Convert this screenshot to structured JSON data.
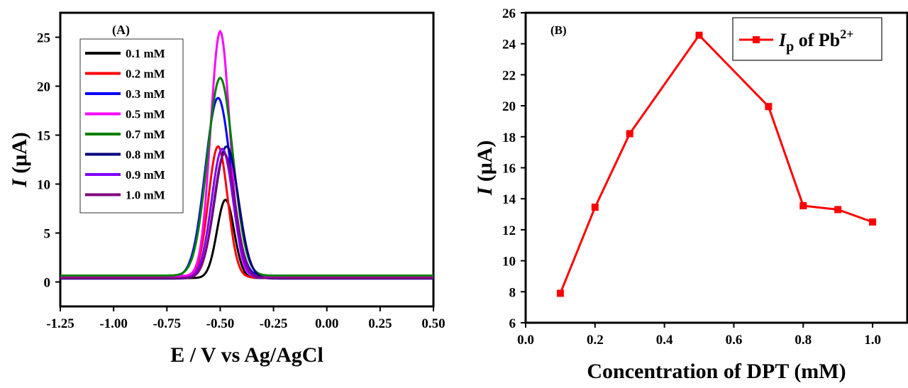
{
  "chart_data": [
    {
      "type": "line",
      "panel_label": "(A)",
      "xlabel": "E / V vs Ag/AgCl",
      "ylabel_italic": "I",
      "ylabel_rest": " (μA)",
      "xlim": [
        -1.25,
        0.5
      ],
      "ylim": [
        -2.5,
        27.5
      ],
      "xticks": [
        "-1.25",
        "-1.00",
        "-0.75",
        "-0.50",
        "-0.25",
        "0.00",
        "0.25",
        "0.50"
      ],
      "yticks": [
        "0",
        "5",
        "10",
        "15",
        "20",
        "25"
      ],
      "legend_position": "top-left",
      "series": [
        {
          "name": "0.1 mM",
          "color": "#000000",
          "peak_potential": -0.475,
          "peak_current": 8.0,
          "width": 0.04,
          "baseline": 0.4
        },
        {
          "name": "0.2 mM",
          "color": "#ff0000",
          "peak_potential": -0.51,
          "peak_current": 13.4,
          "width": 0.045,
          "baseline": 0.45
        },
        {
          "name": "0.3 mM",
          "color": "#0000ff",
          "peak_potential": -0.51,
          "peak_current": 18.3,
          "width": 0.06,
          "baseline": 0.5
        },
        {
          "name": "0.5 mM",
          "color": "#ff00ff",
          "peak_potential": -0.5,
          "peak_current": 25.0,
          "width": 0.045,
          "baseline": 0.6
        },
        {
          "name": "0.7 mM",
          "color": "#007f00",
          "peak_potential": -0.5,
          "peak_current": 20.2,
          "width": 0.06,
          "baseline": 0.65
        },
        {
          "name": "0.8 mM",
          "color": "#00007f",
          "peak_potential": -0.47,
          "peak_current": 13.5,
          "width": 0.055,
          "baseline": 0.35
        },
        {
          "name": "0.9 mM",
          "color": "#7f00ff",
          "peak_potential": -0.49,
          "peak_current": 13.2,
          "width": 0.05,
          "baseline": 0.4
        },
        {
          "name": "1.0 mM",
          "color": "#7f007f",
          "peak_potential": -0.48,
          "peak_current": 12.7,
          "width": 0.05,
          "baseline": 0.4
        }
      ]
    },
    {
      "type": "line",
      "panel_label": "(B)",
      "xlabel": "Concentration of DPT (mM)",
      "ylabel_italic": "I",
      "ylabel_rest": " (μA)",
      "xlim": [
        0,
        1.1
      ],
      "ylim": [
        6,
        26
      ],
      "xticks": [
        "0.0",
        "0.2",
        "0.4",
        "0.6",
        "0.8",
        "1.0"
      ],
      "yticks": [
        "6",
        "8",
        "10",
        "12",
        "14",
        "16",
        "18",
        "20",
        "22",
        "24",
        "26"
      ],
      "legend_position": "top-right",
      "series": [
        {
          "name_italic": "I",
          "name_sub": "p",
          "name_rest": " of Pb",
          "name_sup": "2+",
          "color": "#ff0000",
          "x": [
            0.1,
            0.2,
            0.3,
            0.5,
            0.7,
            0.8,
            0.9,
            1.0
          ],
          "y": [
            7.9,
            13.45,
            18.2,
            24.55,
            19.95,
            13.55,
            13.3,
            12.5
          ]
        }
      ]
    }
  ]
}
